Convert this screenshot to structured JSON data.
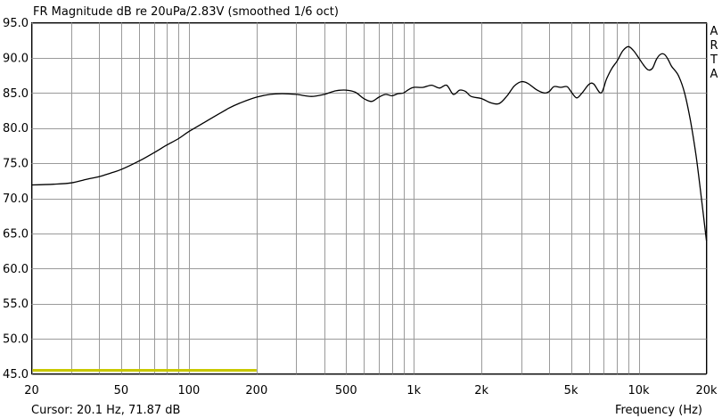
{
  "chart_data": {
    "type": "line",
    "title": "FR Magnitude dB re 20uPa/2.83V (smoothed 1/6 oct)",
    "xlabel": "Frequency (Hz)",
    "ylabel": "",
    "x_scale": "log",
    "xlim": [
      20,
      20000
    ],
    "ylim": [
      45,
      95
    ],
    "grid": true,
    "brand": "ARTA",
    "cursor": "Cursor: 20.1 Hz, 71.87 dB",
    "colors": {
      "curve": "#000000",
      "grid": "#9a9a9a",
      "marker": "#c8c800"
    },
    "x_ticks": [
      {
        "value": 20,
        "label": "20"
      },
      {
        "value": 50,
        "label": "50"
      },
      {
        "value": 100,
        "label": "100"
      },
      {
        "value": 200,
        "label": "200"
      },
      {
        "value": 500,
        "label": "500"
      },
      {
        "value": 1000,
        "label": "1k"
      },
      {
        "value": 2000,
        "label": "2k"
      },
      {
        "value": 5000,
        "label": "5k"
      },
      {
        "value": 10000,
        "label": "10k"
      },
      {
        "value": 20000,
        "label": "20k"
      }
    ],
    "y_ticks": [
      {
        "value": 95,
        "label": "95.0"
      },
      {
        "value": 90,
        "label": "90.0"
      },
      {
        "value": 85,
        "label": "85.0"
      },
      {
        "value": 80,
        "label": "80.0"
      },
      {
        "value": 75,
        "label": "75.0"
      },
      {
        "value": 70,
        "label": "70.0"
      },
      {
        "value": 65,
        "label": "65.0"
      },
      {
        "value": 60,
        "label": "60.0"
      },
      {
        "value": 55,
        "label": "55.0"
      },
      {
        "value": 50,
        "label": "50.0"
      },
      {
        "value": 45,
        "label": "45.0"
      }
    ],
    "x_grid": [
      20,
      30,
      40,
      50,
      60,
      70,
      80,
      90,
      100,
      200,
      300,
      400,
      500,
      600,
      700,
      800,
      900,
      1000,
      2000,
      3000,
      4000,
      5000,
      6000,
      7000,
      8000,
      9000,
      10000,
      20000
    ],
    "marker": {
      "x": [
        20,
        200
      ],
      "y": 45.5
    },
    "series": [
      {
        "x": [
          20,
          25,
          30,
          35,
          40,
          45,
          50,
          60,
          70,
          80,
          90,
          100,
          120,
          150,
          170,
          200,
          230,
          260,
          300,
          350,
          400,
          450,
          500,
          550,
          600,
          650,
          700,
          750,
          800,
          850,
          900,
          950,
          1000,
          1100,
          1200,
          1300,
          1400,
          1500,
          1600,
          1700,
          1800,
          2000,
          2200,
          2400,
          2600,
          2800,
          3000,
          3200,
          3500,
          3800,
          4000,
          4200,
          4500,
          4800,
          5000,
          5300,
          5600,
          6000,
          6300,
          6800,
          7200,
          7600,
          8000,
          8500,
          9000,
          9500,
          10000,
          10500,
          11000,
          11500,
          12000,
          12500,
          13000,
          13500,
          14000,
          15000,
          16000,
          17000,
          18000,
          19000,
          20000
        ],
        "y": [
          71.9,
          72.0,
          72.2,
          72.7,
          73.1,
          73.6,
          74.1,
          75.3,
          76.5,
          77.6,
          78.5,
          79.5,
          81.0,
          82.8,
          83.6,
          84.4,
          84.8,
          84.9,
          84.8,
          84.5,
          84.8,
          85.3,
          85.4,
          85.1,
          84.2,
          83.8,
          84.4,
          84.8,
          84.6,
          84.9,
          85.0,
          85.5,
          85.8,
          85.8,
          86.1,
          85.7,
          86.1,
          84.8,
          85.4,
          85.2,
          84.5,
          84.2,
          83.6,
          83.5,
          84.6,
          86.0,
          86.6,
          86.4,
          85.5,
          85.0,
          85.2,
          85.9,
          85.8,
          85.9,
          85.2,
          84.3,
          85.0,
          86.2,
          86.3,
          85.0,
          87.0,
          88.5,
          89.5,
          91.0,
          91.6,
          91.0,
          90.0,
          89.0,
          88.3,
          88.5,
          89.8,
          90.5,
          90.5,
          89.8,
          88.8,
          87.5,
          85.0,
          81.0,
          76.0,
          70.0,
          64.0
        ]
      }
    ]
  }
}
